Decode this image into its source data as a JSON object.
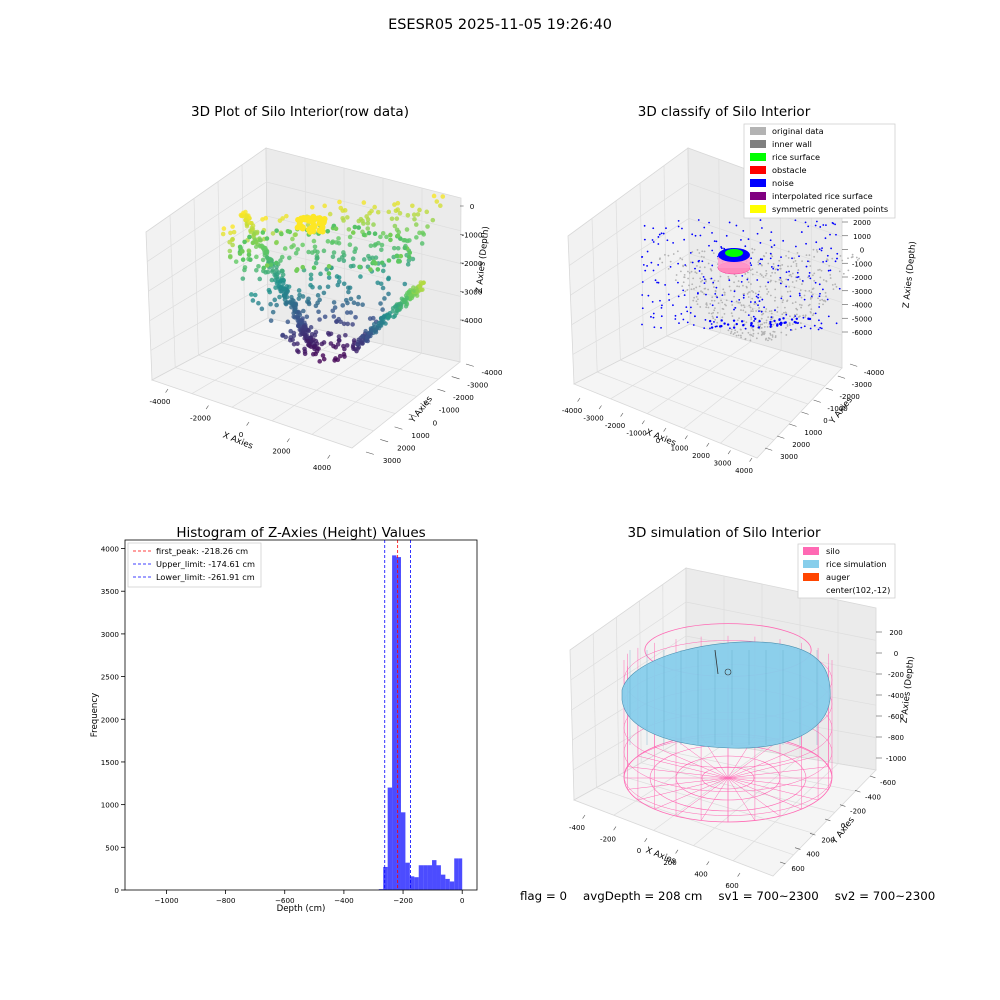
{
  "suptitle": "ESESR05 2025-11-05 19:26:40",
  "status": {
    "flag": "flag = 0",
    "avg_depth": "avgDepth = 208 cm",
    "sv1": "sv1 = 700~2300",
    "sv2": "sv2 = 700~2300"
  },
  "colors": {
    "original": "#b3b3b3",
    "inner_wall": "#7f7f7f",
    "rice_surface": "#00ff00",
    "obstacle": "#ff0000",
    "noise": "#0000ff",
    "interp": "#800080",
    "symmetric": "#ffff00",
    "silo": "#ff69b4",
    "rice_sim": "#87ceeb",
    "auger": "#ff4500",
    "hist": "#0000ff"
  },
  "chart_data": [
    {
      "type": "scatter",
      "title": "3D Plot of Silo Interior(row data)",
      "xlabel": "X Axies",
      "ylabel": "Y Axies",
      "zlabel": "Z Axies (Depth)",
      "x_ticks": [
        "-4000",
        "-2000",
        "0",
        "2000",
        "4000"
      ],
      "y_ticks": [
        "-4000",
        "-3000",
        "-2000",
        "-1000",
        "0",
        "1000",
        "2000",
        "3000"
      ],
      "z_ticks": [
        "-4000",
        "-3000",
        "-2000",
        "-1000",
        "0"
      ],
      "colormap": "viridis"
    },
    {
      "type": "scatter",
      "title": "3D classify of Silo Interior",
      "xlabel": "X Axies",
      "ylabel": "Y Axies",
      "zlabel": "Z Axies (Depth)",
      "x_ticks": [
        "-4000",
        "-3000",
        "-2000",
        "-1000",
        "0",
        "1000",
        "2000",
        "3000",
        "4000"
      ],
      "y_ticks": [
        "-4000",
        "-3000",
        "-2000",
        "-1000",
        "0",
        "1000",
        "2000",
        "3000"
      ],
      "z_ticks": [
        "-6000",
        "-5000",
        "-4000",
        "-3000",
        "-2000",
        "-1000",
        "0",
        "1000",
        "2000"
      ],
      "legend": [
        "original data",
        "inner wall",
        "rice surface",
        "obstacle",
        "noise",
        "interpolated rice surface",
        "symmetric generated points"
      ],
      "legend_placement": "top-right"
    },
    {
      "type": "bar",
      "title": "Histogram of Z-Axies (Height) Values",
      "xlabel": "Depth (cm)",
      "ylabel": "Frequency",
      "xlim": [
        -1140,
        50
      ],
      "ylim": [
        0,
        4100
      ],
      "x_ticks": [
        -1000,
        -800,
        -600,
        -400,
        -200,
        0
      ],
      "y_ticks": [
        0,
        500,
        1000,
        1500,
        2000,
        2500,
        3000,
        3500,
        4000
      ],
      "bins": [
        {
          "x0": -282,
          "x1": -267,
          "value": 10
        },
        {
          "x0": -267,
          "x1": -252,
          "value": 270
        },
        {
          "x0": -252,
          "x1": -237,
          "value": 1200
        },
        {
          "x0": -237,
          "x1": -222,
          "value": 3920
        },
        {
          "x0": -222,
          "x1": -207,
          "value": 3900
        },
        {
          "x0": -207,
          "x1": -192,
          "value": 910
        },
        {
          "x0": -192,
          "x1": -177,
          "value": 320
        },
        {
          "x0": -177,
          "x1": -162,
          "value": 160
        },
        {
          "x0": -162,
          "x1": -147,
          "value": 150
        },
        {
          "x0": -147,
          "x1": -132,
          "value": 290
        },
        {
          "x0": -132,
          "x1": -117,
          "value": 290
        },
        {
          "x0": -117,
          "x1": -102,
          "value": 290
        },
        {
          "x0": -102,
          "x1": -87,
          "value": 350
        },
        {
          "x0": -87,
          "x1": -72,
          "value": 290
        },
        {
          "x0": -72,
          "x1": -57,
          "value": 180
        },
        {
          "x0": -57,
          "x1": -42,
          "value": 130
        },
        {
          "x0": -42,
          "x1": -27,
          "value": 100
        },
        {
          "x0": -27,
          "x1": -12,
          "value": 370
        },
        {
          "x0": -12,
          "x1": 0,
          "value": 370
        }
      ],
      "lines": [
        {
          "name": "first_peak: -218.26 cm",
          "x": -218.26,
          "color": "#ff0000"
        },
        {
          "name": "Upper_limit: -174.61 cm",
          "x": -174.61,
          "color": "#0000ff"
        },
        {
          "name": "Lower_limit: -261.91 cm",
          "x": -261.91,
          "color": "#0000ff"
        }
      ],
      "legend_placement": "top-left"
    },
    {
      "type": "surface",
      "title": "3D simulation of Silo Interior",
      "xlabel": "X Axies",
      "ylabel": "Y Axies",
      "zlabel": "Z Axies (Depth)",
      "x_ticks": [
        "-400",
        "-200",
        "0",
        "200",
        "400",
        "600"
      ],
      "y_ticks": [
        "-600",
        "-400",
        "-200",
        "0",
        "200",
        "400",
        "600"
      ],
      "z_ticks": [
        "-1000",
        "-800",
        "-600",
        "-400",
        "-200",
        "0",
        "200"
      ],
      "legend": [
        "silo",
        "rice simulation",
        "auger",
        "center(102,-12)"
      ],
      "legend_placement": "top-right"
    }
  ]
}
